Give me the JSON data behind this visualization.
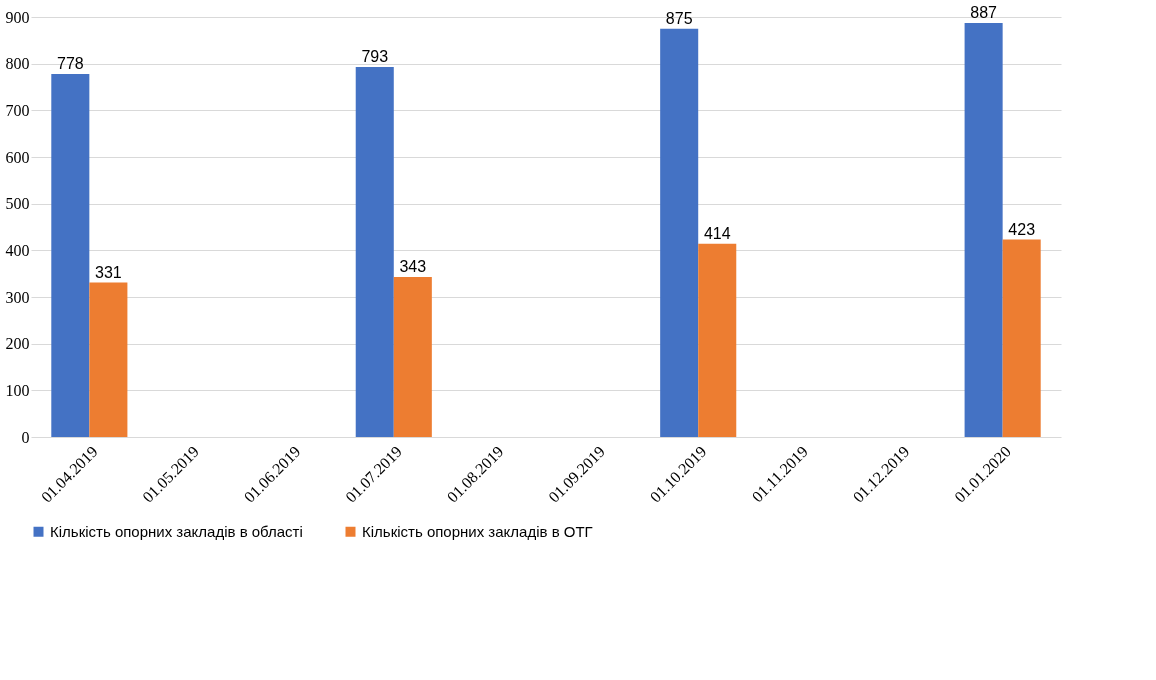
{
  "chart_data": {
    "type": "bar",
    "categories": [
      "01.04.2019",
      "01.05.2019",
      "01.06.2019",
      "01.07.2019",
      "01.08.2019",
      "01.09.2019",
      "01.10.2019",
      "01.11.2019",
      "01.12.2019",
      "01.01.2020"
    ],
    "series": [
      {
        "name": "Кількість опорних закладів в області",
        "color": "#4472c4",
        "values": [
          778,
          null,
          null,
          793,
          null,
          null,
          875,
          null,
          null,
          887
        ]
      },
      {
        "name": "Кількість опорних закладів в ОТГ",
        "color": "#ed7d31",
        "values": [
          331,
          null,
          null,
          343,
          null,
          null,
          414,
          null,
          null,
          423
        ]
      }
    ],
    "ylim": [
      0,
      900
    ],
    "yticks": [
      0,
      100,
      200,
      300,
      400,
      500,
      600,
      700,
      800,
      900
    ],
    "grid": "y",
    "legend": "bottom",
    "data_labels": true
  }
}
